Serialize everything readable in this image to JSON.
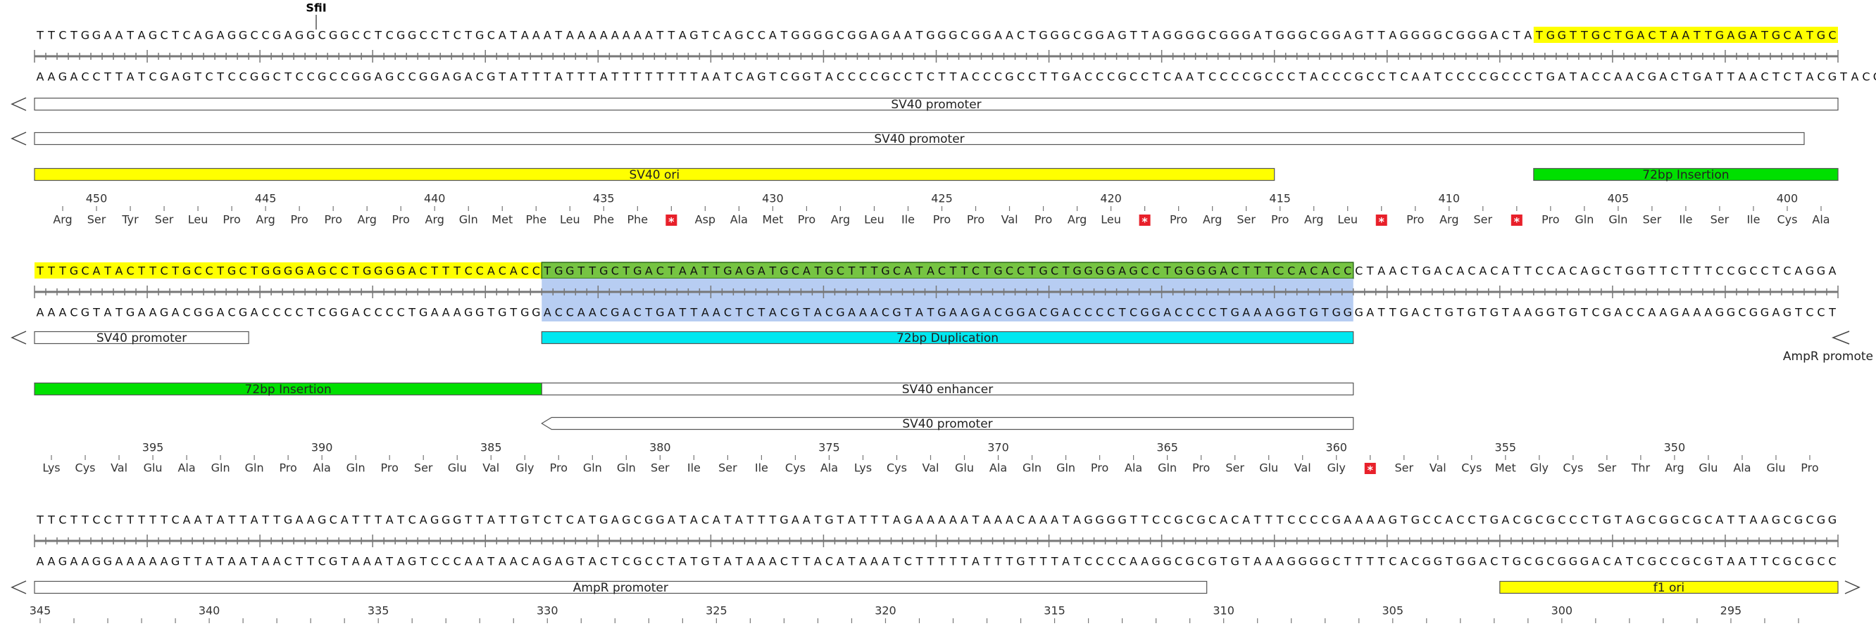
{
  "enzyme": "SfiI",
  "rows": [
    {
      "top": [
        "TTCTGGAATAGCTCAGAGGCCGAGGCGGCCTCGGCCTCTGCATAAATAAAAAAAATTAGTCAGCCATGGGGCGGAGAATGGGCGGAACTGGGCGGAGTTAGGGGCGGGATGGGCGGAGTTAGGGGCGGGACTA",
        "TGGTTGCTGACTAATTGAGATGCATGC"
      ],
      "bottom": [
        "AAGACCTTATCGAGTCTCCGGCTCCGCCGGAGCCGGAGACGTATTTATTTATTTTTTTTAATCAGTCGGTACCCCGCCTCTTACCCGCCTTGACCCGCCTCAATCCCCGCCCTACCCGCCTCAATCCCCGCCCTGATACCAACGACTGATTAACTCTACGTACG"
      ],
      "features": [
        "SV40 promoter",
        "SV40 promoter",
        "SV40 ori",
        "72bp Insertion"
      ],
      "numbers": [
        450,
        445,
        440,
        435,
        430,
        425,
        420,
        415,
        410,
        405,
        400
      ],
      "aminoacids": [
        "Arg",
        "Ser",
        "Tyr",
        "Ser",
        "Leu",
        "Pro",
        "Arg",
        "Pro",
        "Pro",
        "Arg",
        "Pro",
        "Arg",
        "Gln",
        "Met",
        "Phe",
        "Leu",
        "Phe",
        "Phe",
        "*",
        "Asp",
        "Ala",
        "Met",
        "Pro",
        "Arg",
        "Leu",
        "Ile",
        "Pro",
        "Pro",
        "Val",
        "Pro",
        "Arg",
        "Leu",
        "*",
        "Pro",
        "Arg",
        "Ser",
        "Pro",
        "Arg",
        "Leu",
        "*",
        "Pro",
        "Arg",
        "Ser",
        "*",
        "Pro",
        "Gln",
        "Gln",
        "Ser",
        "Ile",
        "Ser",
        "Ile",
        "Cys",
        "Ala"
      ]
    },
    {
      "top": [
        "TTTGCATACTTCTGCCTGCTGGGGAGCCTGGGGACTTTCCACACC",
        "TGGTTGCTGACTAATTGAGATGCATGCTTTGCATACTTCTGCCTGCTGGGGAGCCTGGGGACTTTCCACACC",
        "CTAACTGACACACATTCCACAGCTGGTTCTTTCCGCCTCAGGA"
      ],
      "bottom": [
        "AAACGTATGAAGACGGACGACCCCTCGGACCCCTGAAAGGTGTGG",
        "ACCAACGACTGATTAACTCTACGTACGAAACGTATGAAGACGGACGACCCCTCGGACCCCTGAAAGGTGTGG",
        "GATTGACTGTGTGTAAGGTGTCGACCAAGAAAGGCGGAGTCCT"
      ],
      "features": [
        "SV40 promoter",
        "72bp Duplication",
        "AmpR promote",
        "72bp Insertion",
        "SV40 enhancer",
        "SV40 promoter"
      ],
      "numbers": [
        395,
        390,
        385,
        380,
        375,
        370,
        365,
        360,
        355,
        350
      ],
      "aminoacids": [
        "Lys",
        "Cys",
        "Val",
        "Glu",
        "Ala",
        "Gln",
        "Gln",
        "Pro",
        "Ala",
        "Gln",
        "Pro",
        "Ser",
        "Glu",
        "Val",
        "Gly",
        "Pro",
        "Gln",
        "Gln",
        "Ser",
        "Ile",
        "Ser",
        "Ile",
        "Cys",
        "Ala",
        "Lys",
        "Cys",
        "Val",
        "Glu",
        "Ala",
        "Gln",
        "Gln",
        "Pro",
        "Ala",
        "Gln",
        "Pro",
        "Ser",
        "Glu",
        "Val",
        "Gly",
        "*",
        "Ser",
        "Val",
        "Cys",
        "Met",
        "Gly",
        "Cys",
        "Ser",
        "Thr",
        "Arg",
        "Glu",
        "Ala",
        "Glu",
        "Pro"
      ]
    },
    {
      "top": [
        "TTCTTCCTTTTTCAATATTATTGAAGCATTTATCAGGGTTATTGTCTCATGAGCGGATACATATTTGAATGTATTTAGAAAAATAAACAAATAGGGGTTCCGCGCACATTTCCCCGAAAAGTGCCACCTGACGCGCCCTGTAGCGGCGCATTAAGCGCGG"
      ],
      "bottom": [
        "AAGAAGGAAAAAGTTATAATAACTTCGTAAATAGTCCCAATAACAGAGTACTCGCCTATGTATAAACTTACATAAATCTTTTTATTTGTTTATCCCCAAGGCGCGTGTAAAGGGGCTTTTCACGGTGGACTGCGCGGGACATCGCCGCGTAATTCGCGCC"
      ],
      "features": [
        "AmpR promoter",
        "f1 ori"
      ],
      "numbers": [
        345,
        340,
        335,
        330,
        325,
        320,
        315,
        310,
        305,
        300,
        295
      ]
    }
  ]
}
